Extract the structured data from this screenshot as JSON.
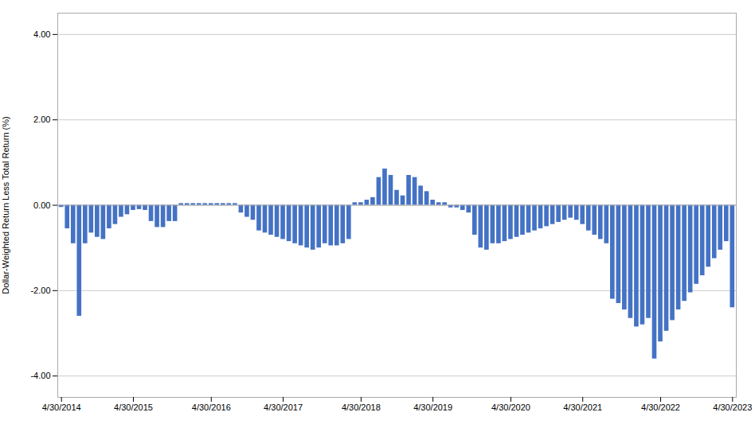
{
  "chart_data": {
    "type": "bar",
    "ylabel": "Dollar-Weighted Return Less Total Return (%)",
    "categories": [
      "4/30/2014",
      null,
      null,
      null,
      null,
      null,
      null,
      null,
      null,
      null,
      null,
      null,
      "4/30/2015",
      null,
      null,
      null,
      null,
      null,
      null,
      null,
      null,
      null,
      null,
      null,
      null,
      "4/30/2016",
      null,
      null,
      null,
      null,
      null,
      null,
      null,
      null,
      null,
      null,
      null,
      "4/30/2017",
      null,
      null,
      null,
      null,
      null,
      null,
      null,
      null,
      null,
      null,
      null,
      null,
      "4/30/2018",
      null,
      null,
      null,
      null,
      null,
      null,
      null,
      null,
      null,
      null,
      null,
      "4/30/2019",
      null,
      null,
      null,
      null,
      null,
      null,
      null,
      null,
      null,
      null,
      null,
      null,
      "4/30/2020",
      null,
      null,
      null,
      null,
      null,
      null,
      null,
      null,
      null,
      null,
      null,
      "4/30/2021",
      null,
      null,
      null,
      null,
      null,
      null,
      null,
      null,
      null,
      null,
      null,
      null,
      "4/30/2022",
      null,
      null,
      null,
      null,
      null,
      null,
      null,
      null,
      null,
      null,
      null,
      "4/30/2023"
    ],
    "values": [
      -0.05,
      -0.55,
      -0.9,
      -2.6,
      -0.9,
      -0.65,
      -0.75,
      -0.8,
      -0.55,
      -0.45,
      -0.28,
      -0.22,
      -0.12,
      -0.1,
      -0.12,
      -0.38,
      -0.52,
      -0.52,
      -0.38,
      -0.38,
      0.04,
      0.04,
      0.04,
      0.04,
      0.04,
      0.04,
      0.04,
      0.04,
      0.04,
      0.04,
      -0.18,
      -0.28,
      -0.35,
      -0.6,
      -0.65,
      -0.7,
      -0.75,
      -0.8,
      -0.85,
      -0.9,
      -0.95,
      -1.0,
      -1.05,
      -1.0,
      -0.9,
      -0.95,
      -0.95,
      -0.9,
      -0.8,
      0.06,
      0.06,
      0.12,
      0.18,
      0.65,
      0.85,
      0.7,
      0.35,
      0.22,
      0.7,
      0.65,
      0.45,
      0.32,
      0.12,
      0.06,
      0.06,
      -0.06,
      -0.06,
      -0.12,
      -0.18,
      -0.7,
      -1.0,
      -1.05,
      -0.9,
      -0.9,
      -0.85,
      -0.8,
      -0.75,
      -0.7,
      -0.65,
      -0.6,
      -0.55,
      -0.5,
      -0.45,
      -0.4,
      -0.35,
      -0.3,
      -0.35,
      -0.45,
      -0.6,
      -0.7,
      -0.8,
      -0.9,
      -2.2,
      -2.3,
      -2.45,
      -2.65,
      -2.85,
      -2.8,
      -2.65,
      -3.6,
      -3.2,
      -2.95,
      -2.7,
      -2.45,
      -2.25,
      -2.05,
      -1.85,
      -1.65,
      -1.45,
      -1.25,
      -1.05,
      -0.85,
      -2.4
    ],
    "color": "#4472C4",
    "ylim": [
      -4.5,
      4.5
    ],
    "yticks": [
      {
        "value": -4,
        "label": "-4.00"
      },
      {
        "value": -2,
        "label": "-2.00"
      },
      {
        "value": 0,
        "label": "0.00"
      },
      {
        "value": 2,
        "label": "2.00"
      },
      {
        "value": 4,
        "label": "4.00"
      }
    ],
    "grid": true
  }
}
